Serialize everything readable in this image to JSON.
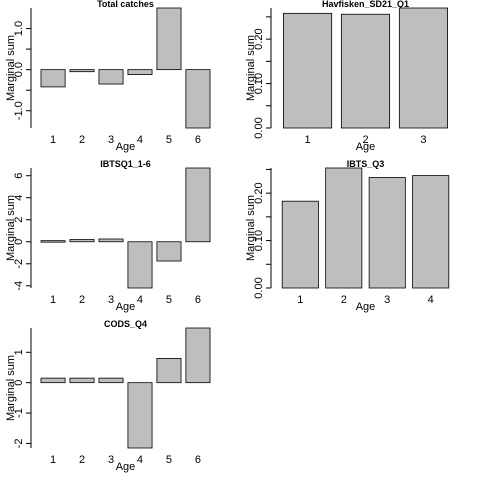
{
  "chart_data": [
    {
      "type": "bar",
      "title": "Total catches",
      "xlabel": "Age",
      "ylabel": "Marginal sum",
      "categories": [
        "1",
        "2",
        "3",
        "4",
        "5",
        "6"
      ],
      "values": [
        -0.42,
        -0.05,
        -0.35,
        -0.12,
        1.5,
        -1.42
      ],
      "ylim": [
        -1.42,
        1.5
      ],
      "yticks": [
        -1.0,
        -0.5,
        0.0,
        0.5,
        1.0
      ],
      "yticklabels": [
        "-1.0",
        "",
        "0.0",
        "",
        "1.0"
      ]
    },
    {
      "type": "bar",
      "title": "Havfisken_SD21_Q1",
      "xlabel": "Age",
      "ylabel": "Marginal sum",
      "categories": [
        "1",
        "2",
        "3"
      ],
      "values": [
        0.258,
        0.256,
        0.27
      ],
      "ylim": [
        0,
        0.27
      ],
      "yticks": [
        0.0,
        0.05,
        0.1,
        0.15,
        0.2,
        0.25
      ],
      "yticklabels": [
        "0.00",
        "",
        "0.10",
        "",
        "0.20",
        ""
      ]
    },
    {
      "type": "bar",
      "title": "IBTSQ1_1-6",
      "xlabel": "Age",
      "ylabel": "Marginal sum",
      "categories": [
        "1",
        "2",
        "3",
        "4",
        "5",
        "6"
      ],
      "values": [
        0.1,
        0.2,
        0.25,
        -4.2,
        -1.75,
        6.7
      ],
      "ylim": [
        -4.2,
        6.7
      ],
      "yticks": [
        -4,
        -2,
        0,
        2,
        4,
        6
      ],
      "yticklabels": [
        "-4",
        "-2",
        "0",
        "2",
        "4",
        "6"
      ]
    },
    {
      "type": "bar",
      "title": "IBTS_Q3",
      "xlabel": "Age",
      "ylabel": "Marginal sum",
      "categories": [
        "1",
        "2",
        "3",
        "4"
      ],
      "values": [
        0.183,
        0.253,
        0.233,
        0.237
      ],
      "ylim": [
        0,
        0.253
      ],
      "yticks": [
        0.0,
        0.05,
        0.1,
        0.15,
        0.2,
        0.25
      ],
      "yticklabels": [
        "0.00",
        "",
        "0.10",
        "",
        "0.20",
        ""
      ]
    },
    {
      "type": "bar",
      "title": "CODS_Q4",
      "xlabel": "Age",
      "ylabel": "Marginal sum",
      "categories": [
        "1",
        "2",
        "3",
        "4",
        "5",
        "6"
      ],
      "values": [
        0.15,
        0.15,
        0.15,
        -2.15,
        0.8,
        1.8
      ],
      "ylim": [
        -2.15,
        1.8
      ],
      "yticks": [
        -2,
        -1,
        0,
        1
      ],
      "yticklabels": [
        "-2",
        "-1",
        "0",
        "1"
      ]
    }
  ]
}
